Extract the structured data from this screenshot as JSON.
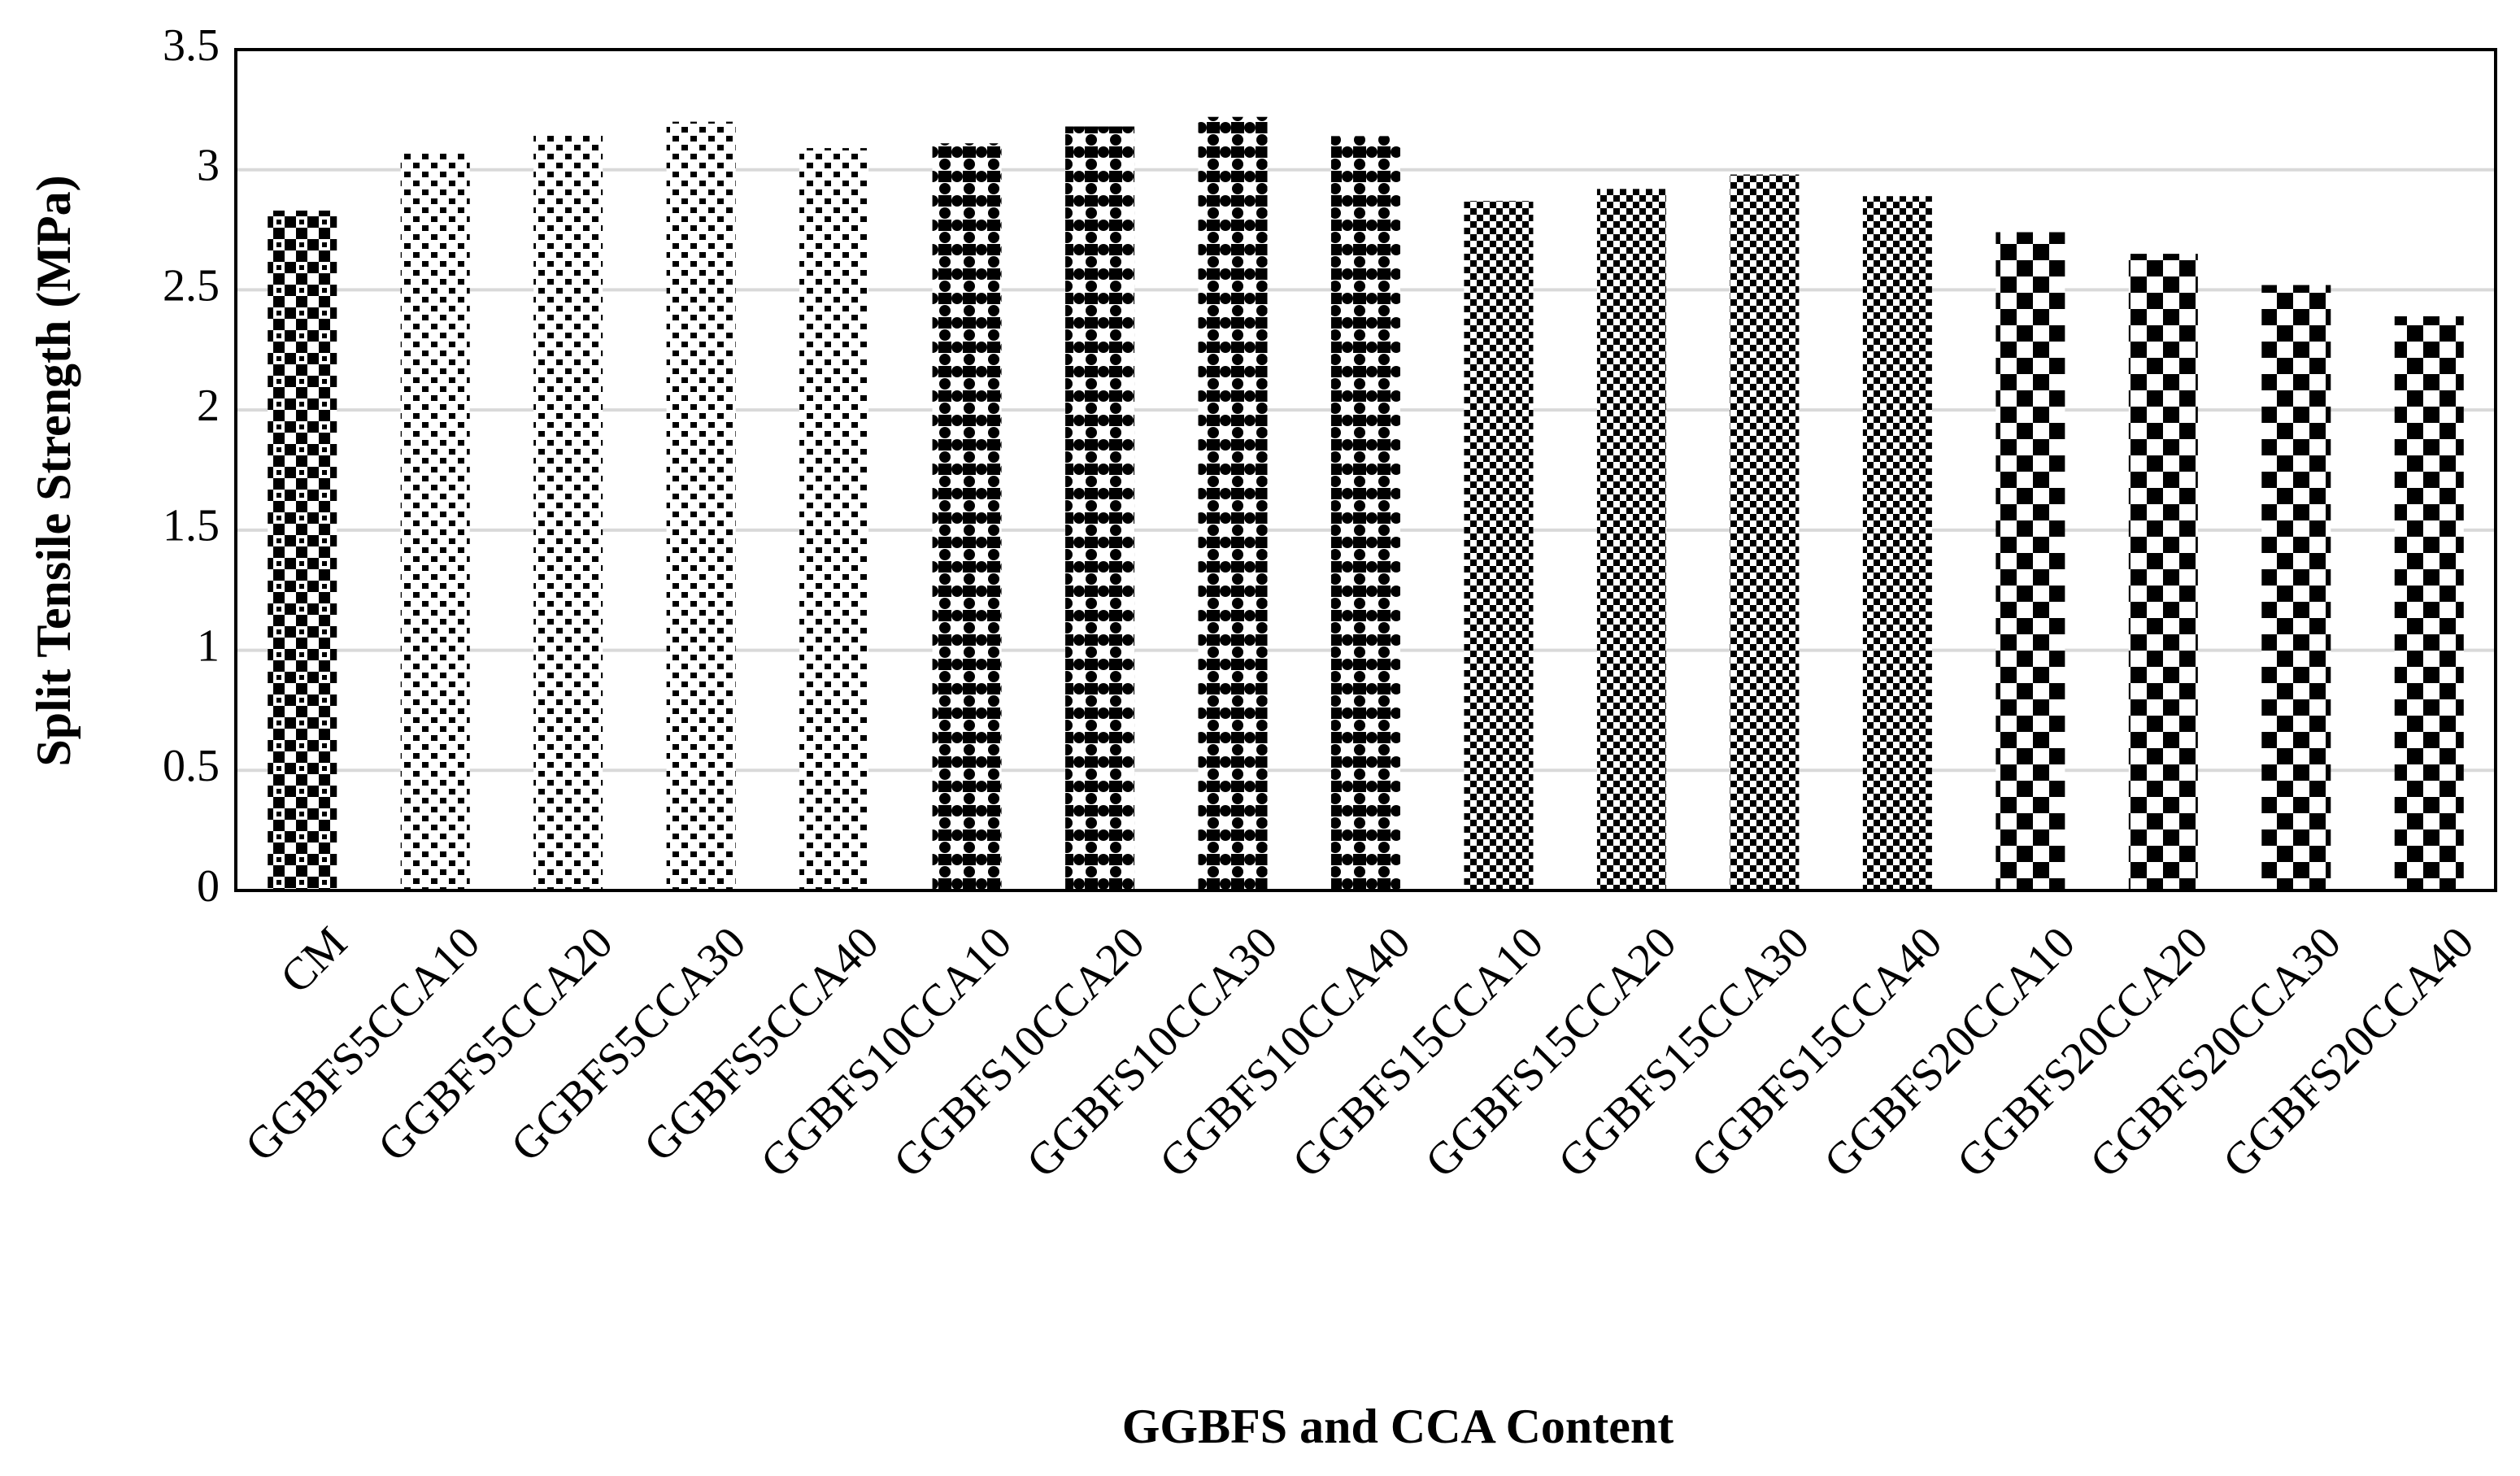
{
  "chart_data": {
    "type": "bar",
    "x_label": "GGBFS and CCA Content",
    "y_label": "Split Tensile Strength (MPa)",
    "categories": [
      "CM",
      "GGBFS5CCA10",
      "GGBFS5CCA20",
      "GGBFS5CCA30",
      "GGBFS5CCA40",
      "GGBFS10CCA10",
      "GGBFS10CCA20",
      "GGBFS10CCA30",
      "GGBFS10CCA40",
      "GGBFS15CCA10",
      "GGBFS15CCA20",
      "GGBFS15CCA30",
      "GGBFS15CCA40",
      "GGBFS20CCA10",
      "GGBFS20CCA20",
      "GGBFS20CCA30",
      "GGBFS20CCA40"
    ],
    "values": [
      2.83,
      3.07,
      3.15,
      3.2,
      3.09,
      3.11,
      3.18,
      3.22,
      3.14,
      2.87,
      2.92,
      2.98,
      2.89,
      2.74,
      2.65,
      2.52,
      2.39
    ],
    "color": "#000000",
    "ylim": [
      0,
      3.5
    ],
    "yticks": [
      0,
      0.5,
      1,
      1.5,
      2,
      2.5,
      3,
      3.5
    ],
    "grid": true
  }
}
